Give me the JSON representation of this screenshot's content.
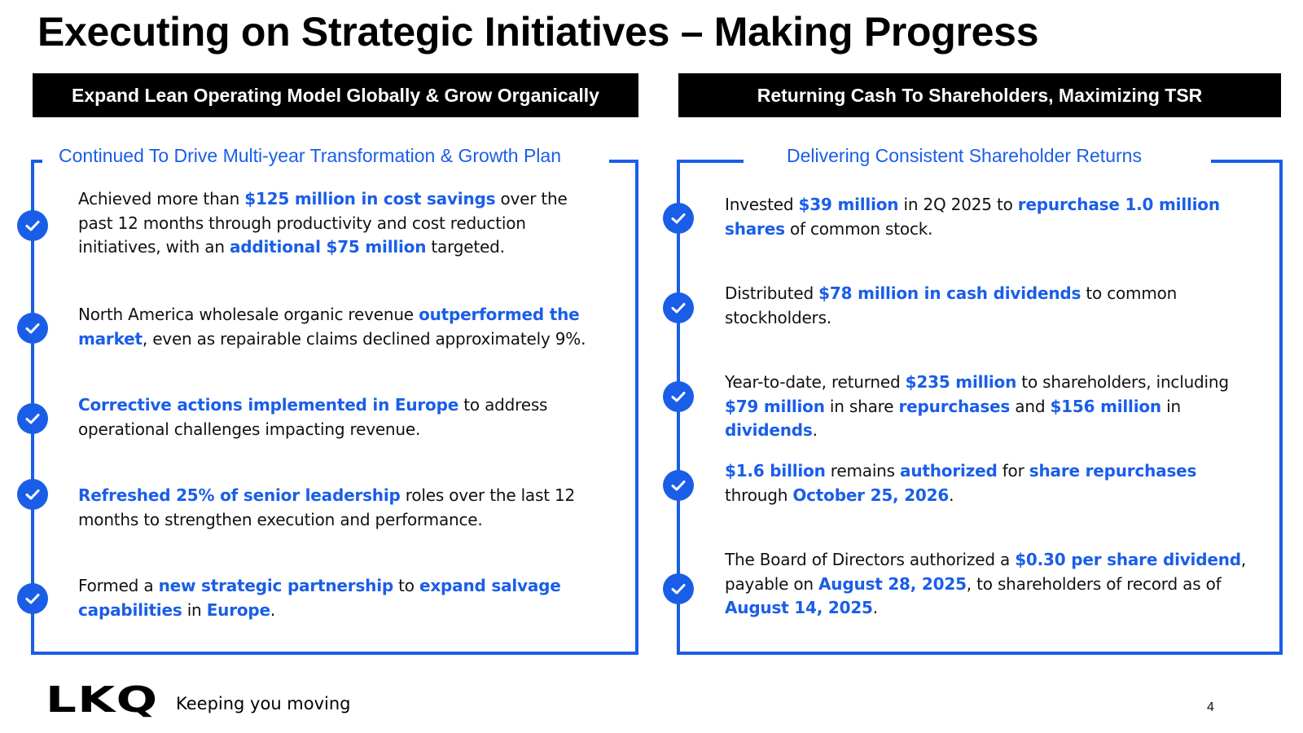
{
  "title": "Executing on Strategic Initiatives – Making Progress",
  "left_banner": "Expand Lean Operating Model Globally & Grow Organically",
  "right_banner": "Returning Cash To Shareholders, Maximizing TSR",
  "left_subhead": "Continued To Drive Multi-year Transformation & Growth Plan",
  "right_subhead": "Delivering Consistent Shareholder Returns",
  "left_items": [
    [
      {
        "t": "Achieved more than "
      },
      {
        "t": "$125 million in cost savings",
        "hl": true
      },
      {
        "t": " over the past 12 months through productivity and cost reduction initiatives, with an "
      },
      {
        "t": "additional $75 million",
        "hl": true
      },
      {
        "t": " targeted."
      }
    ],
    [
      {
        "t": "North America wholesale organic revenue "
      },
      {
        "t": "outperformed the market",
        "hl": true
      },
      {
        "t": ", even as repairable claims declined approximately 9%."
      }
    ],
    [
      {
        "t": "Corrective actions implemented in Europe",
        "hl": true
      },
      {
        "t": " to address operational challenges impacting revenue."
      }
    ],
    [
      {
        "t": "Refreshed 25% of senior leadership",
        "hl": true
      },
      {
        "t": " roles over the last 12 months to strengthen execution and performance."
      }
    ],
    [
      {
        "t": "Formed a "
      },
      {
        "t": "new strategic partnership",
        "hl": true
      },
      {
        "t": " to "
      },
      {
        "t": "expand salvage capabilities",
        "hl": true
      },
      {
        "t": " in "
      },
      {
        "t": "Europe",
        "hl": true
      },
      {
        "t": "."
      }
    ]
  ],
  "right_items": [
    [
      {
        "t": "Invested "
      },
      {
        "t": "$39 million",
        "hl": true
      },
      {
        "t": " in 2Q 2025 to "
      },
      {
        "t": "repurchase 1.0 million shares",
        "hl": true
      },
      {
        "t": " of common stock."
      }
    ],
    [
      {
        "t": "Distributed "
      },
      {
        "t": "$78 million in cash dividends",
        "hl": true
      },
      {
        "t": " to common stockholders."
      }
    ],
    [
      {
        "t": "Year-to-date, returned "
      },
      {
        "t": "$235 million",
        "hl": true
      },
      {
        "t": " to shareholders, including "
      },
      {
        "t": "$79 million",
        "hl": true
      },
      {
        "t": " in share "
      },
      {
        "t": "repurchases",
        "hl": true
      },
      {
        "t": " and "
      },
      {
        "t": "$156 million",
        "hl": true
      },
      {
        "t": " in "
      },
      {
        "t": "dividends",
        "hl": true
      },
      {
        "t": "."
      }
    ],
    [
      {
        "t": "$1.6 billion",
        "hl": true
      },
      {
        "t": " remains "
      },
      {
        "t": "authorized",
        "hl": true
      },
      {
        "t": " for "
      },
      {
        "t": "share repurchases",
        "hl": true
      },
      {
        "t": " through "
      },
      {
        "t": "October 25, 2026",
        "hl": true
      },
      {
        "t": "."
      }
    ],
    [
      {
        "t": "The Board of Directors authorized a "
      },
      {
        "t": "$0.30 per share dividend",
        "hl": true
      },
      {
        "t": ", payable on "
      },
      {
        "t": "August 28, 2025",
        "hl": true
      },
      {
        "t": ", to shareholders of record as of "
      },
      {
        "t": "August 14, 2025",
        "hl": true
      },
      {
        "t": "."
      }
    ]
  ],
  "footer": {
    "logo": "LKQ",
    "tagline": "Keeping you moving",
    "page_number": "4"
  },
  "colors": {
    "accent": "#1a5ee8",
    "banner_bg": "#000000",
    "text": "#111111"
  },
  "icons": {
    "bullet": "check-circle-icon"
  }
}
